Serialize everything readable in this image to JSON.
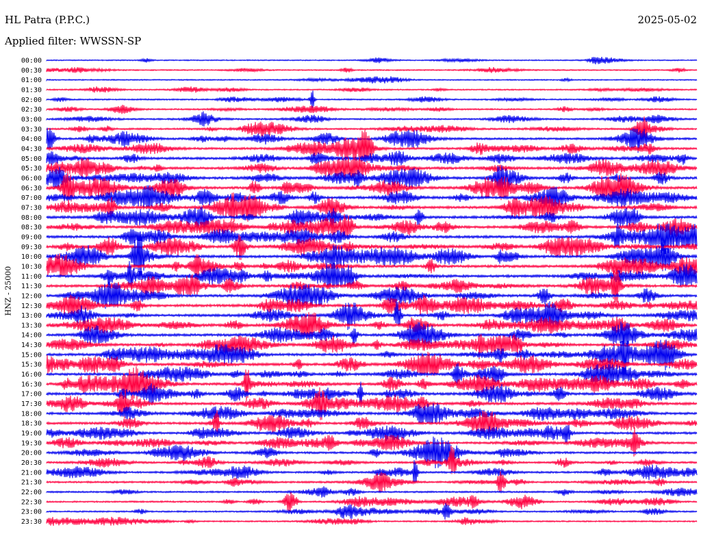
{
  "header": {
    "station": "HL Patra (P.P.C.)",
    "filter": "Applied filter: WWSSN-SP",
    "date": "2025-05-02"
  },
  "chart_data": {
    "type": "line",
    "title": "HL Patra (P.P.C.)",
    "subtitle": "Applied filter: WWSSN-SP",
    "date": "2025-05-02",
    "ylabel": "HNZ - 25000",
    "xlabel": "",
    "grid": false,
    "row_interval_minutes": 30,
    "row_labels": [
      "00:00",
      "00:30",
      "01:00",
      "01:30",
      "02:00",
      "02:30",
      "03:00",
      "03:30",
      "04:00",
      "04:30",
      "05:00",
      "05:30",
      "06:00",
      "06:30",
      "07:00",
      "07:30",
      "08:00",
      "08:30",
      "09:00",
      "09:30",
      "10:00",
      "10:30",
      "11:00",
      "11:30",
      "12:00",
      "12:30",
      "13:00",
      "13:30",
      "14:00",
      "14:30",
      "15:00",
      "15:30",
      "16:00",
      "16:30",
      "17:00",
      "17:30",
      "18:00",
      "18:30",
      "19:00",
      "19:30",
      "20:00",
      "20:30",
      "21:00",
      "21:30",
      "22:00",
      "22:30",
      "23:00",
      "23:30"
    ],
    "series": [
      {
        "name": "",
        "color": "#0000EE"
      },
      {
        "name": "",
        "color": "#FF0040"
      }
    ],
    "activity_levels": [
      0.15,
      0.25,
      0.2,
      0.3,
      0.35,
      0.4,
      0.45,
      0.55,
      0.7,
      0.8,
      0.9,
      0.95,
      1.0,
      1.0,
      1.0,
      1.0,
      1.0,
      1.0,
      1.0,
      1.0,
      1.0,
      1.0,
      1.0,
      1.0,
      1.0,
      1.0,
      1.0,
      1.0,
      1.0,
      1.0,
      1.0,
      1.0,
      1.0,
      1.0,
      1.0,
      1.0,
      0.95,
      0.9,
      0.85,
      0.8,
      0.75,
      0.7,
      0.65,
      0.6,
      0.5,
      0.45,
      0.4,
      0.35
    ]
  }
}
